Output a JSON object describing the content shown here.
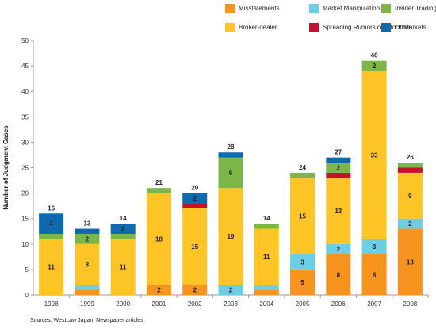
{
  "chart_data": {
    "type": "bar",
    "stacked": true,
    "title": "",
    "xlabel": "",
    "ylabel": "Number of Judgment Cases",
    "ylim": [
      0,
      50
    ],
    "yticks": [
      0,
      5,
      10,
      15,
      20,
      25,
      30,
      35,
      40,
      45,
      50
    ],
    "grid": false,
    "legend_placement": "top-right",
    "categories": [
      "1998",
      "1999",
      "2000",
      "2001",
      "2002",
      "2003",
      "2004",
      "2005",
      "2006",
      "2007",
      "2008"
    ],
    "series": [
      {
        "name": "Misstatements",
        "color": "#f7941d",
        "values": [
          0,
          1,
          0,
          2,
          2,
          0,
          1,
          5,
          8,
          8,
          13
        ]
      },
      {
        "name": "Market Manipulation",
        "color": "#6dcde4",
        "values": [
          0,
          1,
          0,
          0,
          0,
          2,
          1,
          3,
          2,
          3,
          2
        ]
      },
      {
        "name": "Broker-dealer",
        "color": "#ffc425",
        "values": [
          11,
          8,
          11,
          18,
          15,
          19,
          11,
          15,
          13,
          33,
          9
        ]
      },
      {
        "name": "Spreading Rumors on Stock Markets",
        "color": "#c8102e",
        "values": [
          0,
          0,
          0,
          0,
          1,
          0,
          0,
          0,
          1,
          0,
          1
        ]
      },
      {
        "name": "Insider Trading",
        "color": "#7ab648",
        "values": [
          1,
          2,
          1,
          1,
          0,
          6,
          1,
          1,
          2,
          2,
          1
        ]
      },
      {
        "name": "Other",
        "color": "#0d6aad",
        "values": [
          4,
          1,
          2,
          0,
          2,
          1,
          0,
          0,
          1,
          0,
          0
        ]
      }
    ],
    "segment_labels_shown": [
      [
        null,
        null,
        "11",
        null,
        null,
        "4"
      ],
      [
        null,
        null,
        "8",
        null,
        "2",
        null
      ],
      [
        null,
        null,
        "11",
        null,
        null,
        "2"
      ],
      [
        "2",
        null,
        "18",
        null,
        null,
        null
      ],
      [
        "2",
        null,
        "15",
        null,
        null,
        "2"
      ],
      [
        null,
        "2",
        "19",
        null,
        "6",
        null
      ],
      [
        null,
        null,
        "11",
        null,
        null,
        null
      ],
      [
        "5",
        "3",
        "15",
        null,
        null,
        null
      ],
      [
        "8",
        "2",
        "13",
        null,
        "2",
        null
      ],
      [
        "8",
        "3",
        "33",
        null,
        "2",
        null
      ],
      [
        "13",
        "2",
        "9",
        null,
        null,
        null
      ]
    ],
    "totals": [
      "16",
      "13",
      "14",
      "21",
      "20",
      "28",
      "14",
      "24",
      "27",
      "46",
      "26"
    ],
    "legend_order": [
      "Misstatements",
      "Market Manipulation",
      "Insider Trading",
      "Broker-dealer",
      "Spreading Rumors on Stock Markets",
      "Other"
    ],
    "source": "Sources: WestLaw Japan, Newspaper articles"
  }
}
